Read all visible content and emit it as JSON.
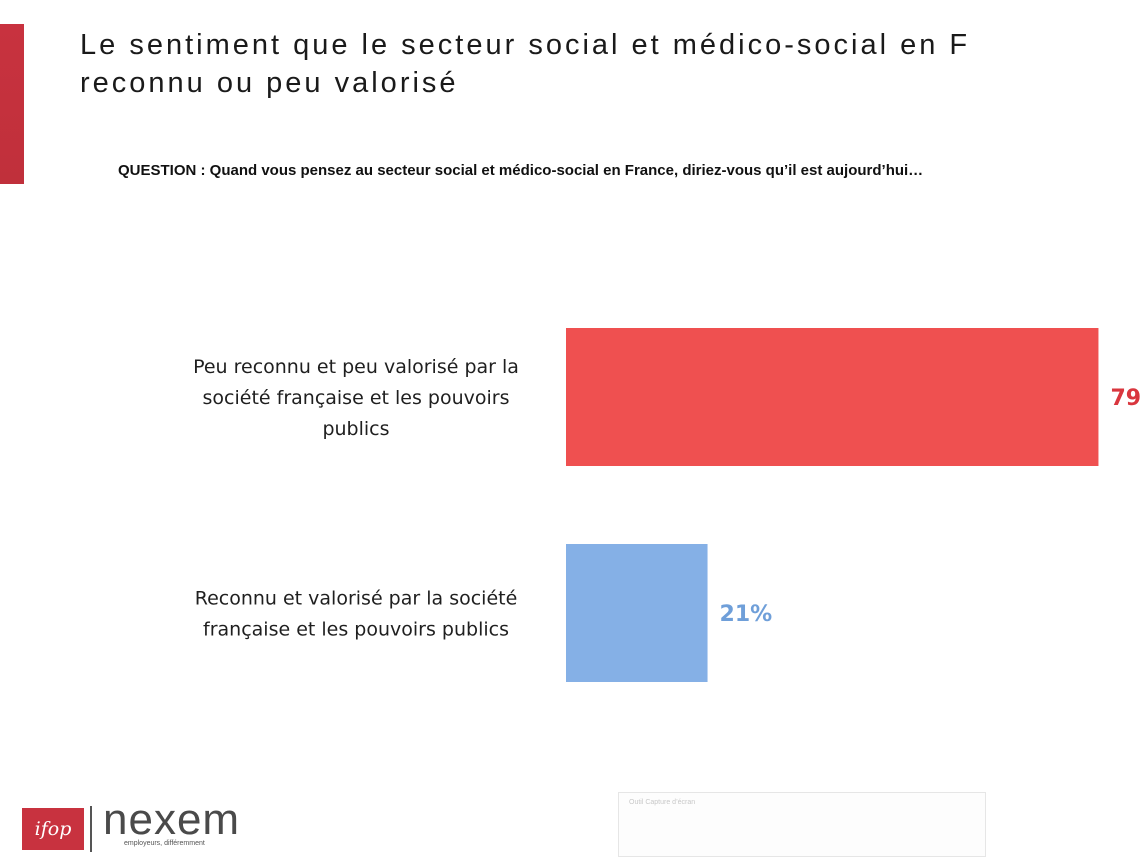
{
  "slide": {
    "title_line1": "Le sentiment que le secteur social et médico-social en F",
    "title_line2": "reconnu ou peu valorisé",
    "question": "QUESTION : Quand vous pensez au secteur social et médico-social en France, diriez-vous qu’il est aujourd’hui…",
    "accent_color": "#c8323f"
  },
  "chart_data": {
    "type": "bar",
    "orientation": "horizontal",
    "categories": [
      [
        "Peu reconnu et peu valorisé par la",
        "société française et les pouvoirs",
        "publics"
      ],
      [
        "Reconnu et valorisé par la société",
        "française et les pouvoirs publics"
      ]
    ],
    "values": [
      79,
      21
    ],
    "value_labels": [
      "79",
      "21%"
    ],
    "colors": [
      "#ef5050",
      "#85b0e6"
    ],
    "label_colors": [
      "#d9363e",
      "#6f9fd9"
    ],
    "xlim": [
      0,
      100
    ],
    "title": "",
    "xlabel": "",
    "ylabel": "",
    "grid": false,
    "legend": "none"
  },
  "footer": {
    "ifop_logo": "ifop",
    "nexem_logo": "nexem",
    "nexem_tagline": "employeurs, différemment",
    "ghost_caption": "Outil Capture d’écran"
  }
}
